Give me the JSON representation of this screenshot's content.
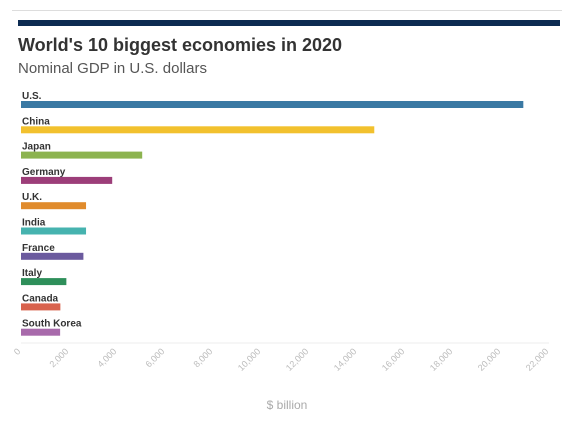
{
  "title": "World's 10 biggest economies in 2020",
  "subtitle": "Nominal GDP in U.S. dollars",
  "accent_color": "#0d2b52",
  "chart_data": {
    "type": "bar",
    "orientation": "horizontal",
    "title": "World's 10 biggest economies in 2020",
    "subtitle": "Nominal GDP in U.S. dollars",
    "xlabel": "$ billion",
    "ylabel": "",
    "xlim": [
      0,
      22000
    ],
    "grid": false,
    "legend": "none",
    "categories": [
      "U.S.",
      "China",
      "Japan",
      "Germany",
      "U.K.",
      "India",
      "France",
      "Italy",
      "Canada",
      "South Korea"
    ],
    "values": [
      20930,
      14720,
      5050,
      3800,
      2710,
      2710,
      2600,
      1890,
      1640,
      1630
    ],
    "colors": [
      "#3a79a3",
      "#f2c12e",
      "#8cb34f",
      "#9c3e79",
      "#e08b2c",
      "#46b3af",
      "#6b5a9e",
      "#2e8f5a",
      "#d8624d",
      "#a86aab"
    ],
    "ticks": [
      "0",
      "2,000",
      "4,000",
      "6,000",
      "8,000",
      "10,000",
      "12,000",
      "14,000",
      "16,000",
      "18,000",
      "20,000",
      "22,000"
    ]
  }
}
